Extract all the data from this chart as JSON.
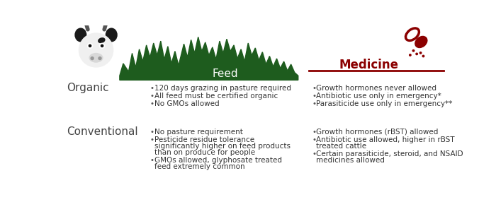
{
  "bg_color": "#ffffff",
  "feed_header_bg": "#1e5c1e",
  "feed_header_text_color": "#ffffff",
  "medicine_header_color": "#8b0000",
  "medicine_line_color": "#8b0000",
  "row_label_color": "#444444",
  "bullet_text_color": "#333333",
  "organic_label": "Organic",
  "conventional_label": "Conventional",
  "feed_title": "Feed",
  "medicine_title": "Medicine",
  "organic_feed_bullets": [
    "120 days grazing in pasture required",
    "All feed must be certified organic",
    "No GMOs allowed"
  ],
  "organic_medicine_bullets": [
    "Growth hormones never allowed",
    "Antibiotic use only in emergency*",
    "Parasiticide use only in emergency**"
  ],
  "conventional_feed_bullets": [
    "No pasture requirement",
    "Pesticide residue tolerance\nsignificantly higher on feed products\nthan on produce for people",
    "GMOs allowed, glyphosate treated\nfeed extremely common"
  ],
  "conventional_medicine_bullets": [
    "Growth hormones (rBST) allowed",
    "Antibiotic use allowed, higher in rBST\ntreated cattle",
    "Certain parasiticide, steroid, and NSAID\nmedicines allowed"
  ],
  "font_size_label": 11,
  "font_size_bullet": 7.5,
  "font_size_header": 11
}
